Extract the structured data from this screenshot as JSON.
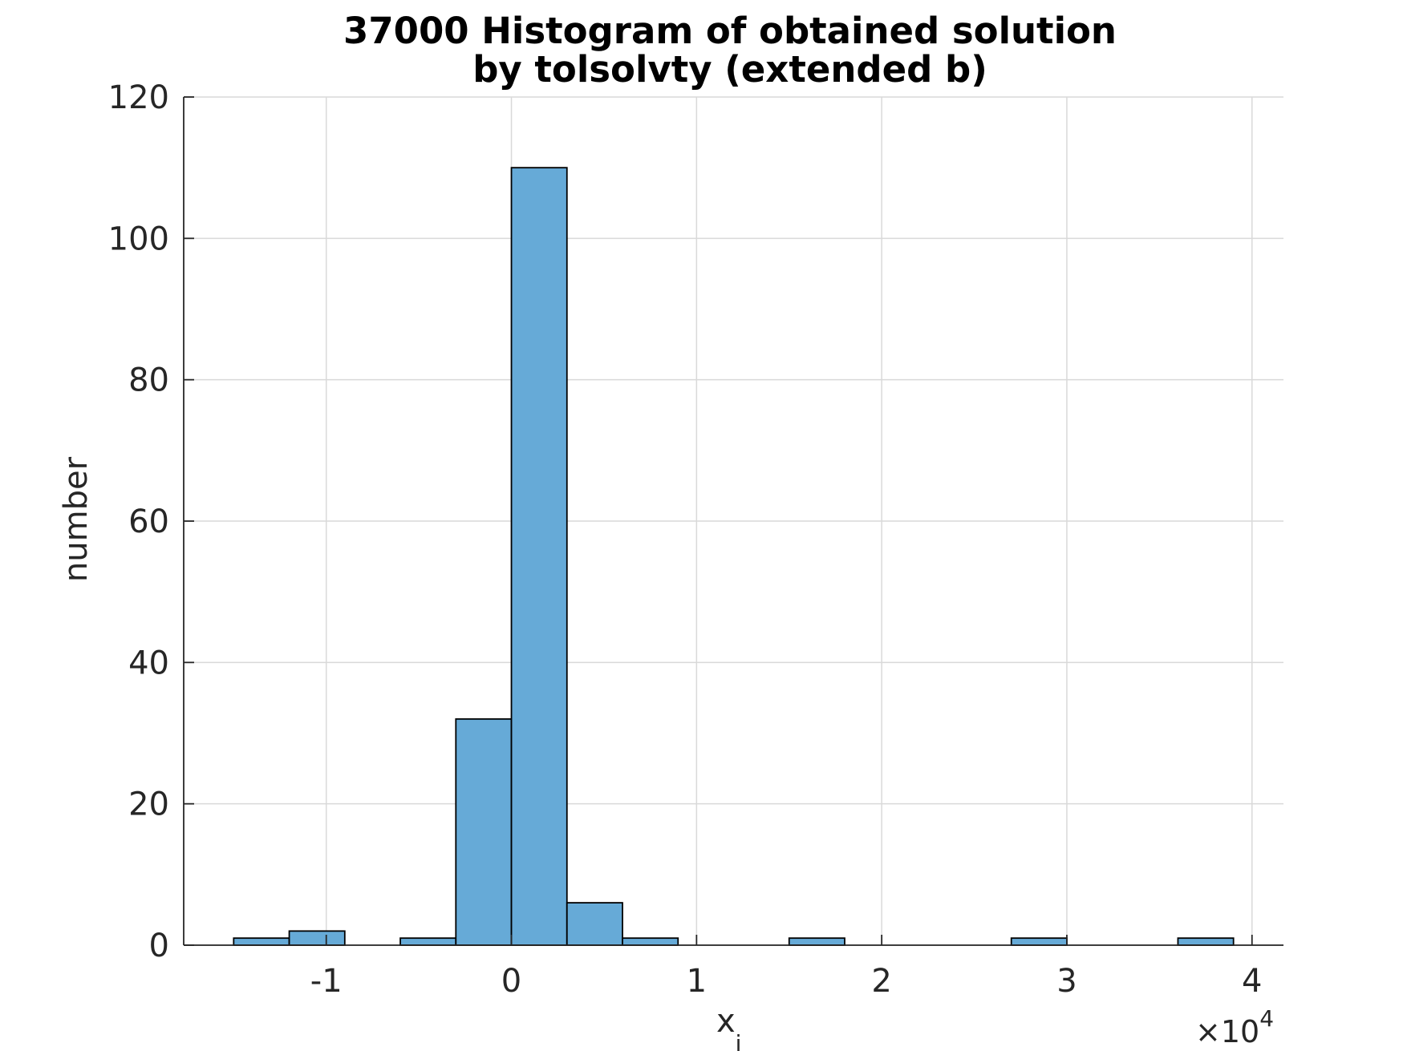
{
  "chart_data": {
    "type": "bar",
    "title_lines": [
      "37000 Histogram of obtained solution",
      "by tolsolvty (extended b)"
    ],
    "xlabel": "x",
    "xlabel_subscript": "i",
    "ylabel": "number",
    "x_exponent_base": "×10",
    "x_exponent": "4",
    "xlim": [
      -1.77,
      4.17
    ],
    "ylim": [
      0,
      120
    ],
    "xticks": [
      -1,
      0,
      1,
      2,
      3,
      4
    ],
    "xtick_labels": [
      "-1",
      "0",
      "1",
      "2",
      "3",
      "4"
    ],
    "yticks": [
      0,
      20,
      40,
      60,
      80,
      100,
      120
    ],
    "ytick_labels": [
      "0",
      "20",
      "40",
      "60",
      "80",
      "100",
      "120"
    ],
    "grid": true,
    "bin_width": 0.3,
    "bins": [
      {
        "x0": -1.5,
        "x1": -1.2,
        "count": 1
      },
      {
        "x0": -1.2,
        "x1": -0.9,
        "count": 2
      },
      {
        "x0": -0.9,
        "x1": -0.6,
        "count": 0
      },
      {
        "x0": -0.6,
        "x1": -0.3,
        "count": 1
      },
      {
        "x0": -0.3,
        "x1": 0.0,
        "count": 32
      },
      {
        "x0": 0.0,
        "x1": 0.3,
        "count": 110
      },
      {
        "x0": 0.3,
        "x1": 0.6,
        "count": 6
      },
      {
        "x0": 0.6,
        "x1": 0.9,
        "count": 1
      },
      {
        "x0": 0.9,
        "x1": 1.2,
        "count": 0
      },
      {
        "x0": 1.2,
        "x1": 1.5,
        "count": 0
      },
      {
        "x0": 1.5,
        "x1": 1.8,
        "count": 1
      },
      {
        "x0": 1.8,
        "x1": 2.1,
        "count": 0
      },
      {
        "x0": 2.1,
        "x1": 2.4,
        "count": 0
      },
      {
        "x0": 2.4,
        "x1": 2.7,
        "count": 0
      },
      {
        "x0": 2.7,
        "x1": 3.0,
        "count": 1
      },
      {
        "x0": 3.0,
        "x1": 3.3,
        "count": 0
      },
      {
        "x0": 3.3,
        "x1": 3.6,
        "count": 0
      },
      {
        "x0": 3.6,
        "x1": 3.9,
        "count": 1
      }
    ],
    "colors": {
      "bar_fill": "#66aad7",
      "bar_edge": "#000000",
      "grid": "#d9d9d9",
      "axis": "#262626",
      "text": "#262626"
    }
  }
}
